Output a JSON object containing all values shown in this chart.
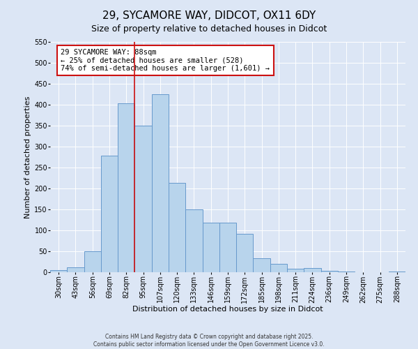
{
  "title": "29, SYCAMORE WAY, DIDCOT, OX11 6DY",
  "subtitle": "Size of property relative to detached houses in Didcot",
  "xlabel": "Distribution of detached houses by size in Didcot",
  "ylabel": "Number of detached properties",
  "bar_labels": [
    "30sqm",
    "43sqm",
    "56sqm",
    "69sqm",
    "82sqm",
    "95sqm",
    "107sqm",
    "120sqm",
    "133sqm",
    "146sqm",
    "159sqm",
    "172sqm",
    "185sqm",
    "198sqm",
    "211sqm",
    "224sqm",
    "236sqm",
    "249sqm",
    "262sqm",
    "275sqm",
    "288sqm"
  ],
  "bar_values": [
    5,
    12,
    50,
    278,
    403,
    350,
    425,
    213,
    150,
    119,
    119,
    92,
    33,
    20,
    9,
    10,
    3,
    1,
    0,
    0,
    2
  ],
  "bar_color": "#b8d4ec",
  "bar_edge_color": "#6699cc",
  "vline_color": "#cc1111",
  "annotation_text": "29 SYCAMORE WAY: 88sqm\n← 25% of detached houses are smaller (528)\n74% of semi-detached houses are larger (1,601) →",
  "annotation_box_color": "#ffffff",
  "annotation_box_edge": "#cc1111",
  "ylim": [
    0,
    550
  ],
  "yticks": [
    0,
    50,
    100,
    150,
    200,
    250,
    300,
    350,
    400,
    450,
    500,
    550
  ],
  "bg_color": "#dce6f5",
  "plot_bg_color": "#dce6f5",
  "footer1": "Contains HM Land Registry data © Crown copyright and database right 2025.",
  "footer2": "Contains public sector information licensed under the Open Government Licence v3.0.",
  "title_fontsize": 11,
  "subtitle_fontsize": 9,
  "tick_fontsize": 7,
  "label_fontsize": 8,
  "annotation_fontsize": 7.5
}
